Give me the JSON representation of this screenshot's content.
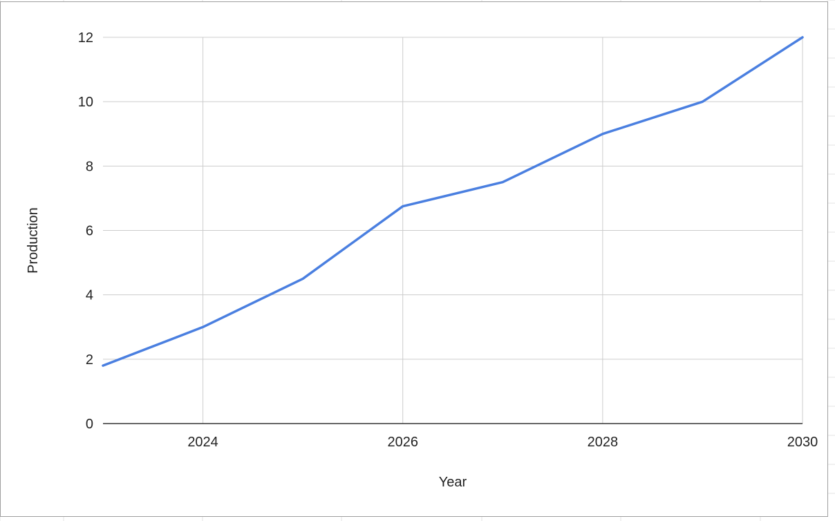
{
  "colors": {
    "series": "#4a7fe0",
    "grid": "#cccccc",
    "axis": "#333333",
    "frame": "#9e9e9e",
    "sheet_grid": "#e3e3e3"
  },
  "chart_data": {
    "type": "line",
    "title": "",
    "xlabel": "Year",
    "ylabel": "Production",
    "xlim": [
      2023,
      2030
    ],
    "ylim": [
      0,
      12
    ],
    "x_ticks": [
      2024,
      2026,
      2028,
      2030
    ],
    "y_ticks": [
      0,
      2,
      4,
      6,
      8,
      10,
      12
    ],
    "grid": true,
    "legend": "none",
    "x": [
      2023,
      2024,
      2025,
      2026,
      2027,
      2028,
      2029,
      2030
    ],
    "series": [
      {
        "values": [
          1.8,
          3.0,
          4.5,
          6.75,
          7.5,
          9.0,
          10.0,
          12.0
        ]
      }
    ]
  }
}
